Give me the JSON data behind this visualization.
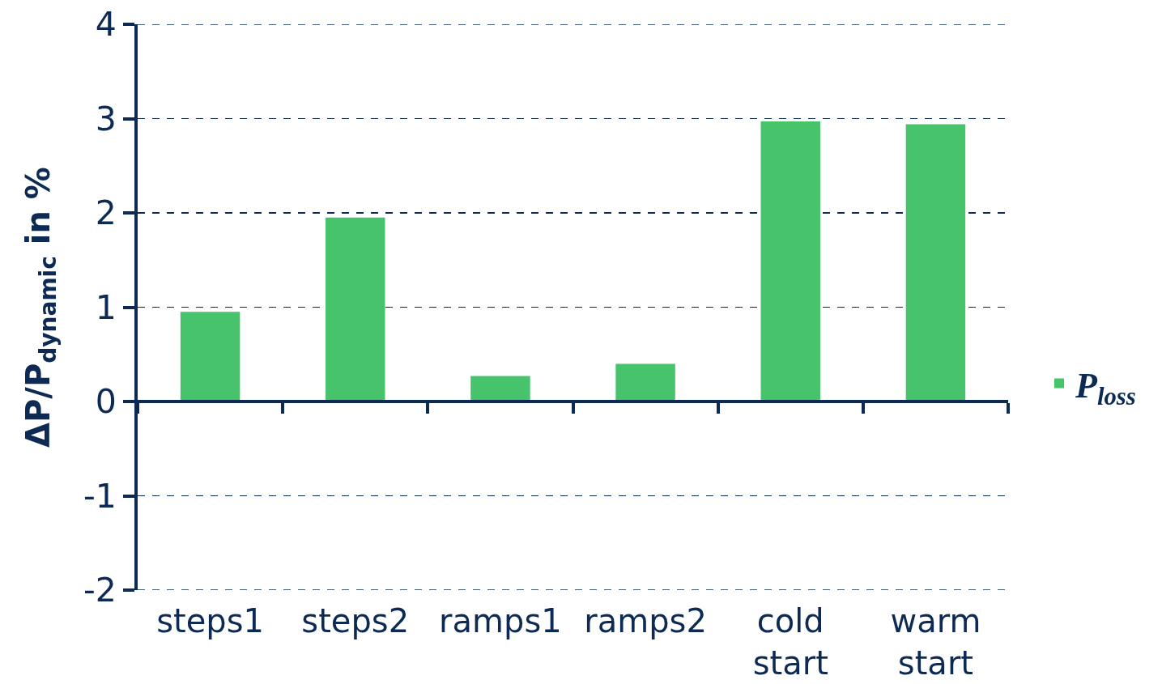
{
  "chart_data": {
    "type": "bar",
    "ylabel": "ΔP/P$_{dynamic}$ in %",
    "categories": [
      "steps1",
      "steps2",
      "ramps1",
      "ramps2",
      "cold start",
      "warm start"
    ],
    "series": [
      {
        "name": "P$_{loss}$",
        "color": "#47c46b",
        "values": [
          0.95,
          1.95,
          0.27,
          0.4,
          2.97,
          2.94
        ]
      }
    ],
    "ylim": [
      -2,
      4
    ],
    "yticks": [
      -2,
      -1,
      0,
      1,
      2,
      3,
      4
    ],
    "grid": "y",
    "legend": "right"
  }
}
